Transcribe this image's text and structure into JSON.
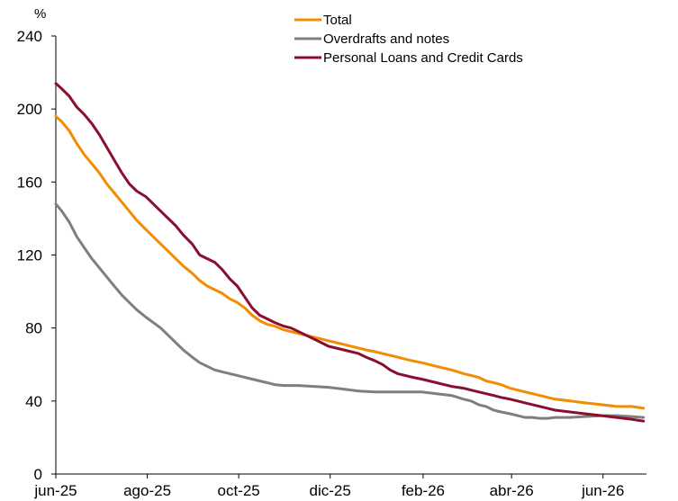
{
  "chart_data": {
    "type": "line",
    "ylabel": "%",
    "ylim": [
      0,
      240
    ],
    "yticks": [
      0,
      40,
      80,
      120,
      160,
      200,
      240
    ],
    "xlim": [
      "2025-06-01",
      "2026-06-30"
    ],
    "xticks": [
      {
        "label": "jun-25",
        "date": "2025-06-01"
      },
      {
        "label": "ago-25",
        "date": "2025-08-01"
      },
      {
        "label": "oct-25",
        "date": "2025-10-01"
      },
      {
        "label": "dic-25",
        "date": "2025-12-01"
      },
      {
        "label": "feb-26",
        "date": "2026-02-01"
      },
      {
        "label": "abr-26",
        "date": "2026-04-01"
      },
      {
        "label": "jun-26",
        "date": "2026-06-01"
      }
    ],
    "grid": false,
    "legend_position": "top-center",
    "series": [
      {
        "name": "Total",
        "color": "#F28C00",
        "points": [
          [
            "2025-06-01",
            196
          ],
          [
            "2025-06-05",
            193
          ],
          [
            "2025-06-10",
            188
          ],
          [
            "2025-06-15",
            181
          ],
          [
            "2025-06-20",
            175
          ],
          [
            "2025-06-25",
            170
          ],
          [
            "2025-06-30",
            165
          ],
          [
            "2025-07-05",
            159
          ],
          [
            "2025-07-10",
            154
          ],
          [
            "2025-07-15",
            149
          ],
          [
            "2025-07-20",
            144
          ],
          [
            "2025-07-25",
            139
          ],
          [
            "2025-07-31",
            134
          ],
          [
            "2025-08-05",
            130
          ],
          [
            "2025-08-10",
            126
          ],
          [
            "2025-08-15",
            122
          ],
          [
            "2025-08-20",
            118
          ],
          [
            "2025-08-25",
            114
          ],
          [
            "2025-08-31",
            110
          ],
          [
            "2025-09-05",
            106
          ],
          [
            "2025-09-10",
            103
          ],
          [
            "2025-09-15",
            101
          ],
          [
            "2025-09-20",
            99
          ],
          [
            "2025-09-25",
            96
          ],
          [
            "2025-09-30",
            94
          ],
          [
            "2025-10-05",
            91
          ],
          [
            "2025-10-10",
            87
          ],
          [
            "2025-10-15",
            84
          ],
          [
            "2025-10-20",
            82
          ],
          [
            "2025-10-25",
            81
          ],
          [
            "2025-10-31",
            79
          ],
          [
            "2025-11-05",
            78
          ],
          [
            "2025-11-10",
            77
          ],
          [
            "2025-11-15",
            76
          ],
          [
            "2025-11-20",
            75
          ],
          [
            "2025-11-25",
            74
          ],
          [
            "2025-11-30",
            73
          ],
          [
            "2025-12-05",
            72
          ],
          [
            "2025-12-10",
            71
          ],
          [
            "2025-12-15",
            70
          ],
          [
            "2025-12-20",
            69
          ],
          [
            "2025-12-25",
            68
          ],
          [
            "2025-12-31",
            67
          ],
          [
            "2026-01-05",
            66
          ],
          [
            "2026-01-10",
            65
          ],
          [
            "2026-01-15",
            64
          ],
          [
            "2026-01-20",
            63
          ],
          [
            "2026-01-25",
            62
          ],
          [
            "2026-01-31",
            61
          ],
          [
            "2026-02-05",
            60
          ],
          [
            "2026-02-10",
            59
          ],
          [
            "2026-02-15",
            58
          ],
          [
            "2026-02-20",
            57
          ],
          [
            "2026-02-28",
            55
          ],
          [
            "2026-03-05",
            54
          ],
          [
            "2026-03-10",
            53
          ],
          [
            "2026-03-15",
            51
          ],
          [
            "2026-03-20",
            50
          ],
          [
            "2026-03-25",
            49
          ],
          [
            "2026-03-31",
            47
          ],
          [
            "2026-04-05",
            46
          ],
          [
            "2026-04-10",
            45
          ],
          [
            "2026-04-15",
            44
          ],
          [
            "2026-04-20",
            43
          ],
          [
            "2026-04-25",
            42
          ],
          [
            "2026-04-30",
            41
          ],
          [
            "2026-05-10",
            40
          ],
          [
            "2026-05-20",
            39
          ],
          [
            "2026-05-31",
            38
          ],
          [
            "2026-06-10",
            37
          ],
          [
            "2026-06-20",
            37
          ],
          [
            "2026-06-28",
            36
          ]
        ]
      },
      {
        "name": "Overdrafts and notes",
        "color": "#7F7F7F",
        "points": [
          [
            "2025-06-01",
            148
          ],
          [
            "2025-06-05",
            144
          ],
          [
            "2025-06-10",
            138
          ],
          [
            "2025-06-15",
            130
          ],
          [
            "2025-06-20",
            124
          ],
          [
            "2025-06-25",
            118
          ],
          [
            "2025-06-30",
            113
          ],
          [
            "2025-07-05",
            108
          ],
          [
            "2025-07-10",
            103
          ],
          [
            "2025-07-15",
            98
          ],
          [
            "2025-07-20",
            94
          ],
          [
            "2025-07-25",
            90
          ],
          [
            "2025-07-31",
            86
          ],
          [
            "2025-08-05",
            83
          ],
          [
            "2025-08-10",
            80
          ],
          [
            "2025-08-15",
            76
          ],
          [
            "2025-08-20",
            72
          ],
          [
            "2025-08-25",
            68
          ],
          [
            "2025-08-31",
            64
          ],
          [
            "2025-09-05",
            61
          ],
          [
            "2025-09-10",
            59
          ],
          [
            "2025-09-15",
            57
          ],
          [
            "2025-09-20",
            56
          ],
          [
            "2025-09-25",
            55
          ],
          [
            "2025-09-30",
            54
          ],
          [
            "2025-10-05",
            53
          ],
          [
            "2025-10-10",
            52
          ],
          [
            "2025-10-15",
            51
          ],
          [
            "2025-10-20",
            50
          ],
          [
            "2025-10-25",
            49
          ],
          [
            "2025-10-31",
            48.5
          ],
          [
            "2025-11-10",
            48.5
          ],
          [
            "2025-11-20",
            48
          ],
          [
            "2025-11-30",
            47.5
          ],
          [
            "2025-12-10",
            46.5
          ],
          [
            "2025-12-20",
            45.5
          ],
          [
            "2025-12-31",
            45
          ],
          [
            "2026-01-10",
            45
          ],
          [
            "2026-01-20",
            45
          ],
          [
            "2026-01-31",
            45
          ],
          [
            "2026-02-10",
            44
          ],
          [
            "2026-02-20",
            43
          ],
          [
            "2026-02-28",
            41
          ],
          [
            "2026-03-05",
            40
          ],
          [
            "2026-03-10",
            38
          ],
          [
            "2026-03-15",
            37
          ],
          [
            "2026-03-20",
            35
          ],
          [
            "2026-03-25",
            34
          ],
          [
            "2026-03-31",
            33
          ],
          [
            "2026-04-05",
            32
          ],
          [
            "2026-04-10",
            31
          ],
          [
            "2026-04-15",
            31
          ],
          [
            "2026-04-20",
            30.5
          ],
          [
            "2026-04-25",
            30.5
          ],
          [
            "2026-04-30",
            31
          ],
          [
            "2026-05-10",
            31
          ],
          [
            "2026-05-20",
            31.5
          ],
          [
            "2026-05-31",
            32
          ],
          [
            "2026-06-10",
            32
          ],
          [
            "2026-06-20",
            31.5
          ],
          [
            "2026-06-28",
            31
          ]
        ]
      },
      {
        "name": "Personal Loans and Credit Cards",
        "color": "#8B0E2E",
        "points": [
          [
            "2025-06-01",
            214
          ],
          [
            "2025-06-05",
            211
          ],
          [
            "2025-06-10",
            207
          ],
          [
            "2025-06-15",
            201
          ],
          [
            "2025-06-20",
            197
          ],
          [
            "2025-06-25",
            192
          ],
          [
            "2025-06-30",
            186
          ],
          [
            "2025-07-05",
            179
          ],
          [
            "2025-07-10",
            172
          ],
          [
            "2025-07-15",
            165
          ],
          [
            "2025-07-20",
            159
          ],
          [
            "2025-07-25",
            155
          ],
          [
            "2025-07-31",
            152
          ],
          [
            "2025-08-05",
            148
          ],
          [
            "2025-08-10",
            144
          ],
          [
            "2025-08-15",
            140
          ],
          [
            "2025-08-20",
            136
          ],
          [
            "2025-08-25",
            131
          ],
          [
            "2025-08-31",
            126
          ],
          [
            "2025-09-05",
            120
          ],
          [
            "2025-09-10",
            118
          ],
          [
            "2025-09-15",
            116
          ],
          [
            "2025-09-20",
            112
          ],
          [
            "2025-09-25",
            107
          ],
          [
            "2025-09-30",
            103
          ],
          [
            "2025-10-05",
            97
          ],
          [
            "2025-10-10",
            91
          ],
          [
            "2025-10-15",
            87
          ],
          [
            "2025-10-20",
            85
          ],
          [
            "2025-10-25",
            83
          ],
          [
            "2025-10-31",
            81
          ],
          [
            "2025-11-05",
            80
          ],
          [
            "2025-11-10",
            78
          ],
          [
            "2025-11-15",
            76
          ],
          [
            "2025-11-20",
            74
          ],
          [
            "2025-11-25",
            72
          ],
          [
            "2025-11-30",
            70
          ],
          [
            "2025-12-05",
            69
          ],
          [
            "2025-12-10",
            68
          ],
          [
            "2025-12-15",
            67
          ],
          [
            "2025-12-20",
            66
          ],
          [
            "2025-12-25",
            64
          ],
          [
            "2025-12-31",
            62
          ],
          [
            "2026-01-05",
            60
          ],
          [
            "2026-01-10",
            57
          ],
          [
            "2026-01-15",
            55
          ],
          [
            "2026-01-20",
            54
          ],
          [
            "2026-01-25",
            53
          ],
          [
            "2026-01-31",
            52
          ],
          [
            "2026-02-05",
            51
          ],
          [
            "2026-02-10",
            50
          ],
          [
            "2026-02-15",
            49
          ],
          [
            "2026-02-20",
            48
          ],
          [
            "2026-02-28",
            47
          ],
          [
            "2026-03-05",
            46
          ],
          [
            "2026-03-10",
            45
          ],
          [
            "2026-03-15",
            44
          ],
          [
            "2026-03-20",
            43
          ],
          [
            "2026-03-25",
            42
          ],
          [
            "2026-03-31",
            41
          ],
          [
            "2026-04-05",
            40
          ],
          [
            "2026-04-10",
            39
          ],
          [
            "2026-04-15",
            38
          ],
          [
            "2026-04-20",
            37
          ],
          [
            "2026-04-25",
            36
          ],
          [
            "2026-04-30",
            35
          ],
          [
            "2026-05-10",
            34
          ],
          [
            "2026-05-20",
            33
          ],
          [
            "2026-05-31",
            32
          ],
          [
            "2026-06-10",
            31
          ],
          [
            "2026-06-20",
            30
          ],
          [
            "2026-06-28",
            29
          ]
        ]
      }
    ]
  }
}
